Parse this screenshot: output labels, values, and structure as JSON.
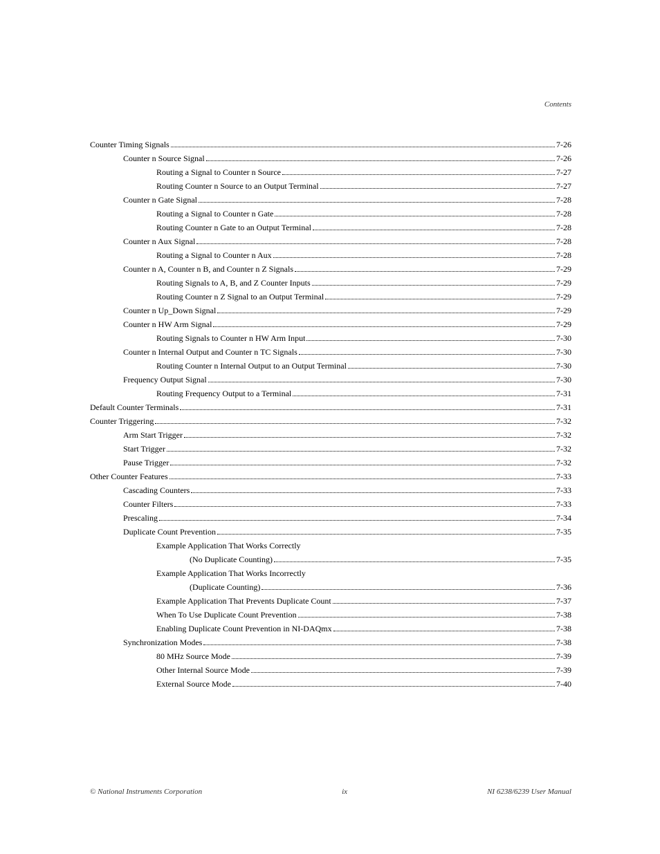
{
  "header": {
    "contents": "Contents"
  },
  "footer": {
    "copyright": "© National Instruments Corporation",
    "pageNumber": "ix",
    "manual": "NI 6238/6239 User Manual"
  },
  "toc": {
    "entries": [
      {
        "indent": 0,
        "text": "Counter Timing Signals",
        "page": "7-26"
      },
      {
        "indent": 1,
        "text": "Counter n Source Signal",
        "page": "7-26"
      },
      {
        "indent": 2,
        "text": "Routing a Signal to Counter n Source",
        "page": "7-27"
      },
      {
        "indent": 2,
        "text": "Routing Counter n Source to an Output Terminal",
        "page": "7-27"
      },
      {
        "indent": 1,
        "text": "Counter n Gate Signal",
        "page": "7-28"
      },
      {
        "indent": 2,
        "text": "Routing a Signal to Counter n Gate",
        "page": "7-28"
      },
      {
        "indent": 2,
        "text": "Routing Counter n Gate to an Output Terminal",
        "page": "7-28"
      },
      {
        "indent": 1,
        "text": "Counter n Aux Signal",
        "page": "7-28"
      },
      {
        "indent": 2,
        "text": "Routing a Signal to Counter n Aux",
        "page": "7-28"
      },
      {
        "indent": 1,
        "text": "Counter n A, Counter n B, and Counter n Z Signals",
        "page": "7-29"
      },
      {
        "indent": 2,
        "text": "Routing Signals to A, B, and Z Counter Inputs",
        "page": "7-29"
      },
      {
        "indent": 2,
        "text": "Routing Counter n Z Signal to an Output Terminal",
        "page": "7-29"
      },
      {
        "indent": 1,
        "text": "Counter n Up_Down Signal",
        "page": "7-29"
      },
      {
        "indent": 1,
        "text": "Counter n HW Arm Signal",
        "page": "7-29"
      },
      {
        "indent": 2,
        "text": "Routing Signals to Counter n HW Arm Input",
        "page": "7-30"
      },
      {
        "indent": 1,
        "text": "Counter n Internal Output and Counter n TC Signals",
        "page": "7-30"
      },
      {
        "indent": 2,
        "text": "Routing Counter n Internal Output to an Output Terminal",
        "page": "7-30"
      },
      {
        "indent": 1,
        "text": "Frequency Output Signal",
        "page": "7-30"
      },
      {
        "indent": 2,
        "text": "Routing Frequency Output to a Terminal",
        "page": "7-31"
      },
      {
        "indent": 0,
        "text": "Default Counter Terminals",
        "page": "7-31"
      },
      {
        "indent": 0,
        "text": "Counter Triggering",
        "page": "7-32"
      },
      {
        "indent": 1,
        "text": "Arm Start Trigger",
        "page": "7-32"
      },
      {
        "indent": 1,
        "text": "Start Trigger",
        "page": "7-32"
      },
      {
        "indent": 1,
        "text": "Pause Trigger",
        "page": "7-32"
      },
      {
        "indent": 0,
        "text": "Other Counter Features",
        "page": "7-33"
      },
      {
        "indent": 1,
        "text": "Cascading Counters",
        "page": "7-33"
      },
      {
        "indent": 1,
        "text": "Counter Filters",
        "page": "7-33"
      },
      {
        "indent": 1,
        "text": "Prescaling",
        "page": "7-34"
      },
      {
        "indent": 1,
        "text": "Duplicate Count Prevention",
        "page": "7-35"
      },
      {
        "indent": 2,
        "text": "Example Application That Works Correctly",
        "page": null
      },
      {
        "indent": 3,
        "text": "(No Duplicate Counting)",
        "page": "7-35"
      },
      {
        "indent": 2,
        "text": "Example Application That Works Incorrectly",
        "page": null
      },
      {
        "indent": 3,
        "text": "(Duplicate Counting)",
        "page": "7-36"
      },
      {
        "indent": 2,
        "text": "Example Application That Prevents Duplicate Count",
        "page": "7-37"
      },
      {
        "indent": 2,
        "text": "When To Use Duplicate Count Prevention",
        "page": "7-38"
      },
      {
        "indent": 2,
        "text": "Enabling Duplicate Count Prevention in NI-DAQmx",
        "page": "7-38"
      },
      {
        "indent": 1,
        "text": "Synchronization Modes",
        "page": "7-38"
      },
      {
        "indent": 2,
        "text": "80 MHz Source Mode",
        "page": "7-39"
      },
      {
        "indent": 2,
        "text": "Other Internal Source Mode",
        "page": "7-39"
      },
      {
        "indent": 2,
        "text": "External Source Mode",
        "page": "7-40"
      }
    ]
  }
}
